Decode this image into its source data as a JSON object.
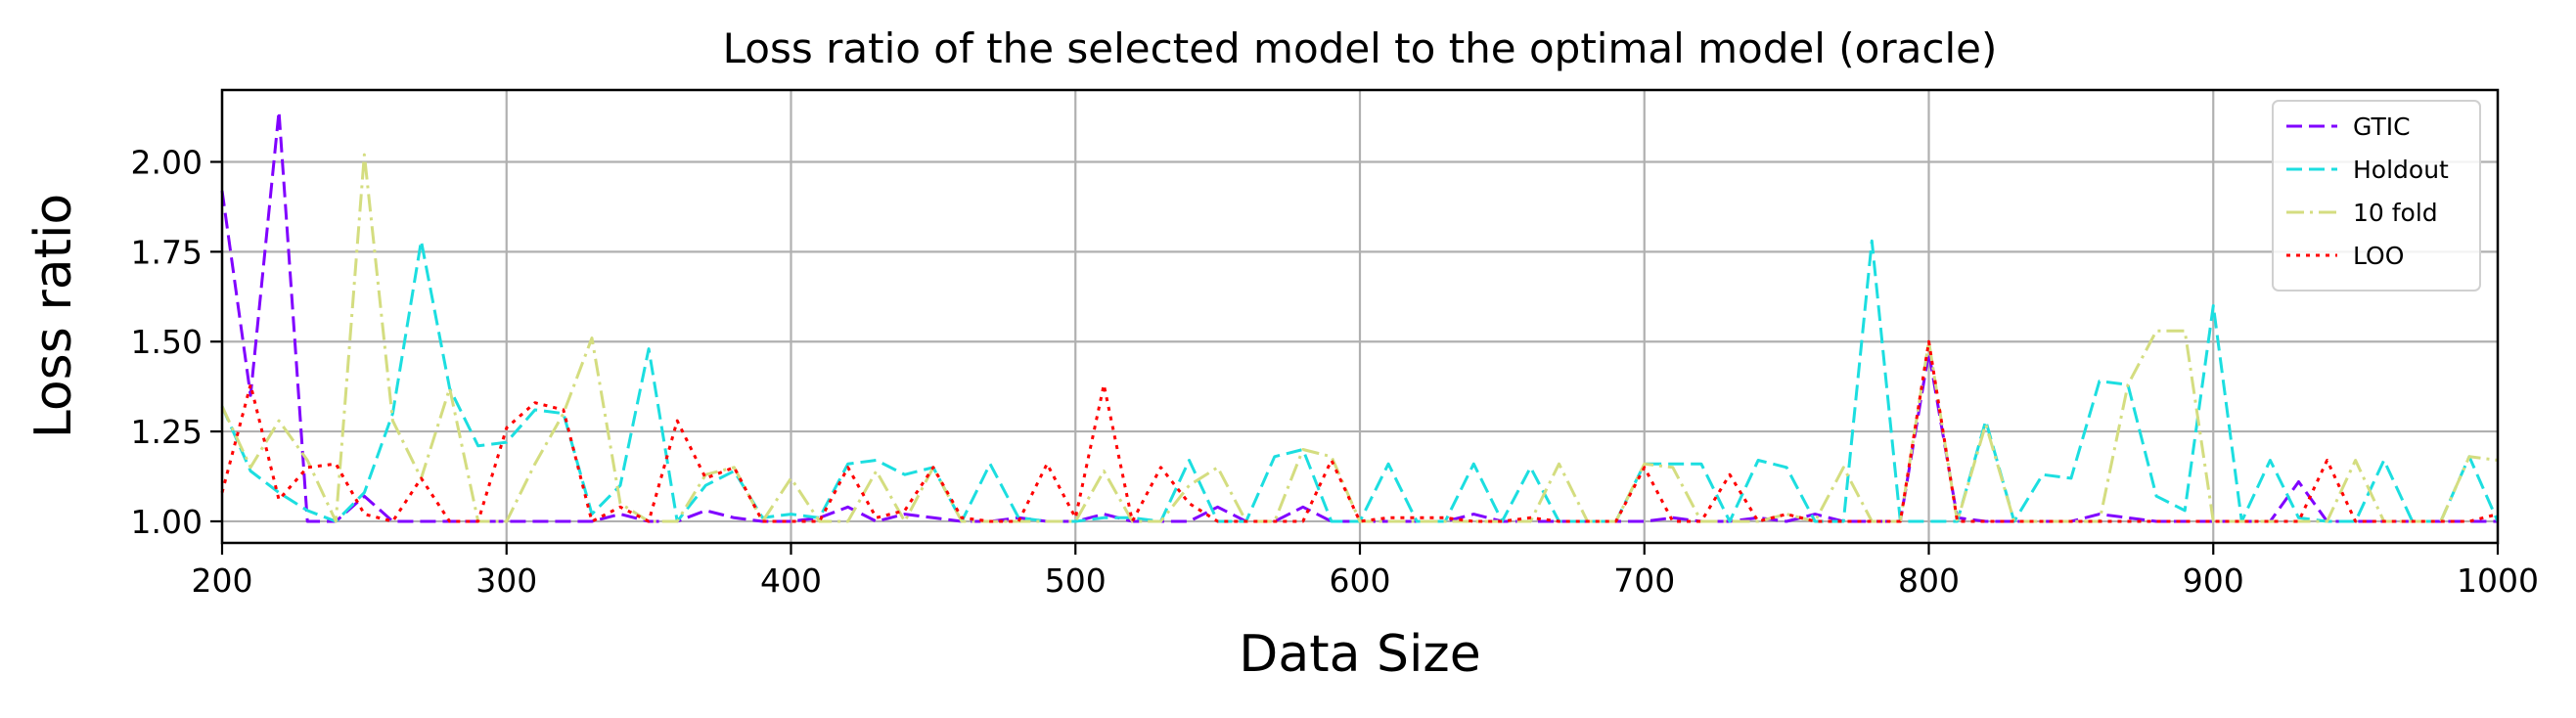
{
  "chart_data": {
    "type": "line",
    "title": "Loss ratio of the selected model to the optimal model (oracle)",
    "xlabel": "Data Size",
    "ylabel": "Loss ratio",
    "xlim": [
      200,
      1000
    ],
    "ylim": [
      0.94,
      2.2
    ],
    "x_ticks": [
      200,
      300,
      400,
      500,
      600,
      700,
      800,
      900,
      1000
    ],
    "y_ticks": [
      1.0,
      1.25,
      1.5,
      1.75,
      2.0
    ],
    "x_tick_labels": [
      "200",
      "300",
      "400",
      "500",
      "600",
      "700",
      "800",
      "900",
      "1000"
    ],
    "y_tick_labels": [
      "1.00",
      "1.25",
      "1.50",
      "1.75",
      "2.00"
    ],
    "grid": true,
    "legend_position": "top-right",
    "x": [
      200,
      210,
      220,
      230,
      240,
      250,
      260,
      270,
      280,
      290,
      300,
      310,
      320,
      330,
      340,
      350,
      360,
      370,
      380,
      390,
      400,
      410,
      420,
      430,
      440,
      450,
      460,
      470,
      480,
      490,
      500,
      510,
      520,
      530,
      540,
      550,
      560,
      570,
      580,
      590,
      600,
      610,
      620,
      630,
      640,
      650,
      660,
      670,
      680,
      690,
      700,
      710,
      720,
      730,
      740,
      750,
      760,
      770,
      780,
      790,
      800,
      810,
      820,
      830,
      840,
      850,
      860,
      870,
      880,
      890,
      900,
      910,
      920,
      930,
      940,
      950,
      960,
      970,
      980,
      990,
      1000
    ],
    "series": [
      {
        "name": "GTIC",
        "color": "#8000ff",
        "dash": "dashed",
        "values": [
          1.92,
          1.35,
          2.14,
          1.0,
          1.0,
          1.07,
          1.0,
          1.0,
          1.0,
          1.0,
          1.0,
          1.0,
          1.0,
          1.0,
          1.02,
          1.0,
          1.0,
          1.03,
          1.01,
          1.0,
          1.0,
          1.01,
          1.04,
          1.0,
          1.02,
          1.01,
          1.0,
          1.0,
          1.01,
          1.0,
          1.0,
          1.02,
          1.0,
          1.0,
          1.0,
          1.04,
          1.0,
          1.0,
          1.04,
          1.0,
          1.0,
          1.0,
          1.0,
          1.0,
          1.02,
          1.0,
          1.0,
          1.0,
          1.0,
          1.0,
          1.0,
          1.01,
          1.0,
          1.0,
          1.01,
          1.0,
          1.02,
          1.0,
          1.0,
          1.0,
          1.47,
          1.01,
          1.0,
          1.0,
          1.0,
          1.0,
          1.02,
          1.01,
          1.0,
          1.0,
          1.0,
          1.0,
          1.0,
          1.11,
          1.0,
          1.0,
          1.0,
          1.0,
          1.0,
          1.0,
          1.0
        ]
      },
      {
        "name": "Holdout",
        "color": "#1cdee0",
        "dash": "dashed",
        "values": [
          1.32,
          1.14,
          1.08,
          1.03,
          1.0,
          1.08,
          1.3,
          1.78,
          1.37,
          1.21,
          1.22,
          1.31,
          1.3,
          1.02,
          1.1,
          1.48,
          1.0,
          1.1,
          1.14,
          1.01,
          1.02,
          1.01,
          1.16,
          1.17,
          1.13,
          1.15,
          1.0,
          1.16,
          1.01,
          1.0,
          1.0,
          1.01,
          1.01,
          1.0,
          1.17,
          1.0,
          1.0,
          1.18,
          1.2,
          1.0,
          1.0,
          1.16,
          1.0,
          1.0,
          1.16,
          1.0,
          1.15,
          1.0,
          1.0,
          1.0,
          1.16,
          1.16,
          1.16,
          1.0,
          1.17,
          1.15,
          1.0,
          1.0,
          1.78,
          1.0,
          1.0,
          1.0,
          1.28,
          1.0,
          1.13,
          1.12,
          1.39,
          1.38,
          1.07,
          1.03,
          1.6,
          1.0,
          1.17,
          1.01,
          1.0,
          1.0,
          1.17,
          1.0,
          1.0,
          1.18,
          1.0
        ]
      },
      {
        "name": "10 fold",
        "color": "#d4dd80",
        "dash": "dashdot",
        "values": [
          1.32,
          1.15,
          1.28,
          1.17,
          1.0,
          2.02,
          1.28,
          1.12,
          1.37,
          1.0,
          1.0,
          1.16,
          1.3,
          1.51,
          1.05,
          1.0,
          1.0,
          1.13,
          1.15,
          1.0,
          1.12,
          1.0,
          1.0,
          1.14,
          1.0,
          1.15,
          1.0,
          1.0,
          1.0,
          1.0,
          1.0,
          1.14,
          1.0,
          1.0,
          1.1,
          1.15,
          1.0,
          1.0,
          1.2,
          1.18,
          1.0,
          1.0,
          1.0,
          1.0,
          1.0,
          1.0,
          1.0,
          1.16,
          1.0,
          1.0,
          1.16,
          1.15,
          1.0,
          1.0,
          1.0,
          1.02,
          1.0,
          1.15,
          1.0,
          1.0,
          1.5,
          1.0,
          1.27,
          1.0,
          1.0,
          1.0,
          1.0,
          1.38,
          1.53,
          1.53,
          1.0,
          1.0,
          1.0,
          1.0,
          1.0,
          1.17,
          1.0,
          1.0,
          1.0,
          1.18,
          1.17
        ]
      },
      {
        "name": "LOO",
        "color": "#ff0000",
        "dash": "dotted",
        "values": [
          1.08,
          1.38,
          1.06,
          1.15,
          1.16,
          1.02,
          1.0,
          1.12,
          1.0,
          1.0,
          1.26,
          1.33,
          1.31,
          1.0,
          1.04,
          1.0,
          1.28,
          1.12,
          1.15,
          1.0,
          1.0,
          1.0,
          1.15,
          1.01,
          1.03,
          1.15,
          1.01,
          1.0,
          1.0,
          1.16,
          1.01,
          1.38,
          1.0,
          1.15,
          1.05,
          1.0,
          1.0,
          1.0,
          1.0,
          1.17,
          1.0,
          1.01,
          1.01,
          1.01,
          1.0,
          1.0,
          1.01,
          1.0,
          1.0,
          1.0,
          1.15,
          1.0,
          1.0,
          1.13,
          1.0,
          1.02,
          1.0,
          1.0,
          1.0,
          1.0,
          1.5,
          1.0,
          1.0,
          1.0,
          1.0,
          1.0,
          1.0,
          1.0,
          1.0,
          1.0,
          1.0,
          1.0,
          1.0,
          1.0,
          1.17,
          1.0,
          1.0,
          1.0,
          1.0,
          1.0,
          1.02
        ]
      }
    ]
  }
}
